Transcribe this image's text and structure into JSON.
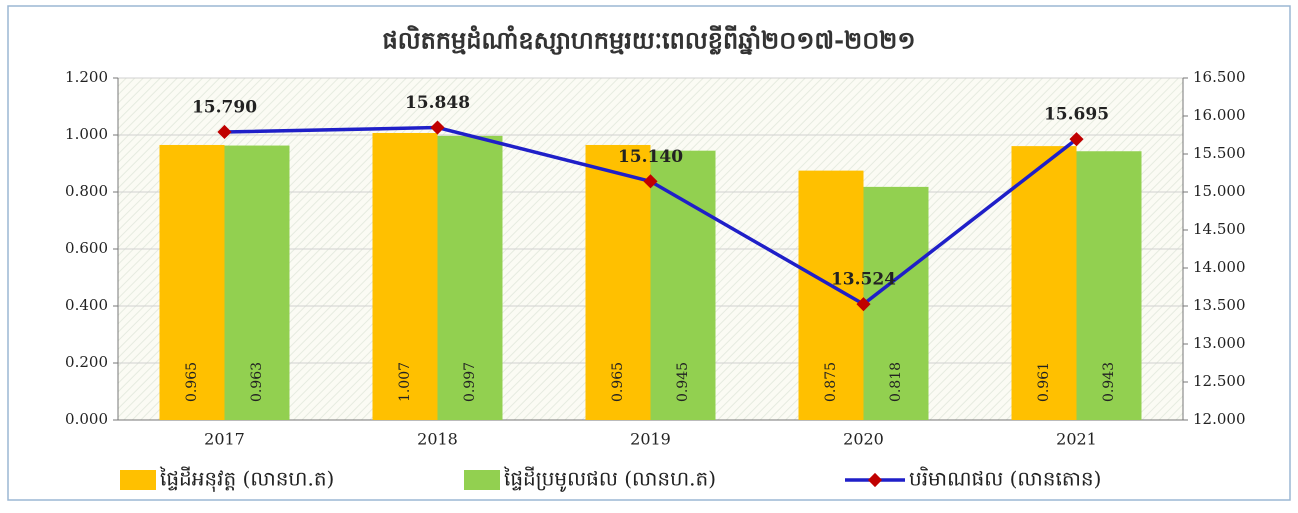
{
  "chart_data": {
    "type": "bar-line",
    "title": "ផលិតកម្មដំណាំឧស្សាហកម្មរយៈពេលខ្លីពីឆ្នាំ២០១៧-២០២១",
    "categories": [
      "2017",
      "2018",
      "2019",
      "2020",
      "2021"
    ],
    "series": [
      {
        "name": "ផ្ទៃដីអនុវត្ត (លានហ.ត)",
        "color": "#ffc000",
        "type": "bar",
        "values": [
          0.965,
          1.007,
          0.965,
          0.875,
          0.961
        ]
      },
      {
        "name": "ផ្ទៃដីប្រមូលផល (លានហ.ត)",
        "color": "#92d050",
        "type": "bar",
        "values": [
          0.963,
          0.997,
          0.945,
          0.818,
          0.943
        ]
      },
      {
        "name": "បរិមាណផល (លានតោន)",
        "color": "#1f1fc8",
        "marker_color": "#c00000",
        "type": "line",
        "axis": "y2",
        "values": [
          15.79,
          15.848,
          15.14,
          13.524,
          15.695
        ],
        "value_labels": [
          "15.790",
          "15.848",
          "15.140",
          "13.524",
          "15.695"
        ]
      }
    ],
    "ylim": [
      0,
      1.2
    ],
    "yticks": [
      {
        "value": 0,
        "label": "0.000"
      },
      {
        "value": 0.2,
        "label": "0.200"
      },
      {
        "value": 0.4,
        "label": "0.400"
      },
      {
        "value": 0.6,
        "label": "0.600"
      },
      {
        "value": 0.8,
        "label": "0.800"
      },
      {
        "value": 1,
        "label": "1.000"
      },
      {
        "value": 1.2,
        "label": "1.200"
      }
    ],
    "y2lim": [
      12,
      16.5
    ],
    "y2ticks": [
      {
        "value": 12,
        "label": "12.000"
      },
      {
        "value": 12.5,
        "label": "12.500"
      },
      {
        "value": 13,
        "label": "13.000"
      },
      {
        "value": 13.5,
        "label": "13.500"
      },
      {
        "value": 14,
        "label": "14.000"
      },
      {
        "value": 14.5,
        "label": "14.500"
      },
      {
        "value": 15,
        "label": "15.000"
      },
      {
        "value": 15.5,
        "label": "15.500"
      },
      {
        "value": 16,
        "label": "16.000"
      },
      {
        "value": 16.5,
        "label": "16.500"
      }
    ],
    "grid": true,
    "legend": "bottom"
  }
}
